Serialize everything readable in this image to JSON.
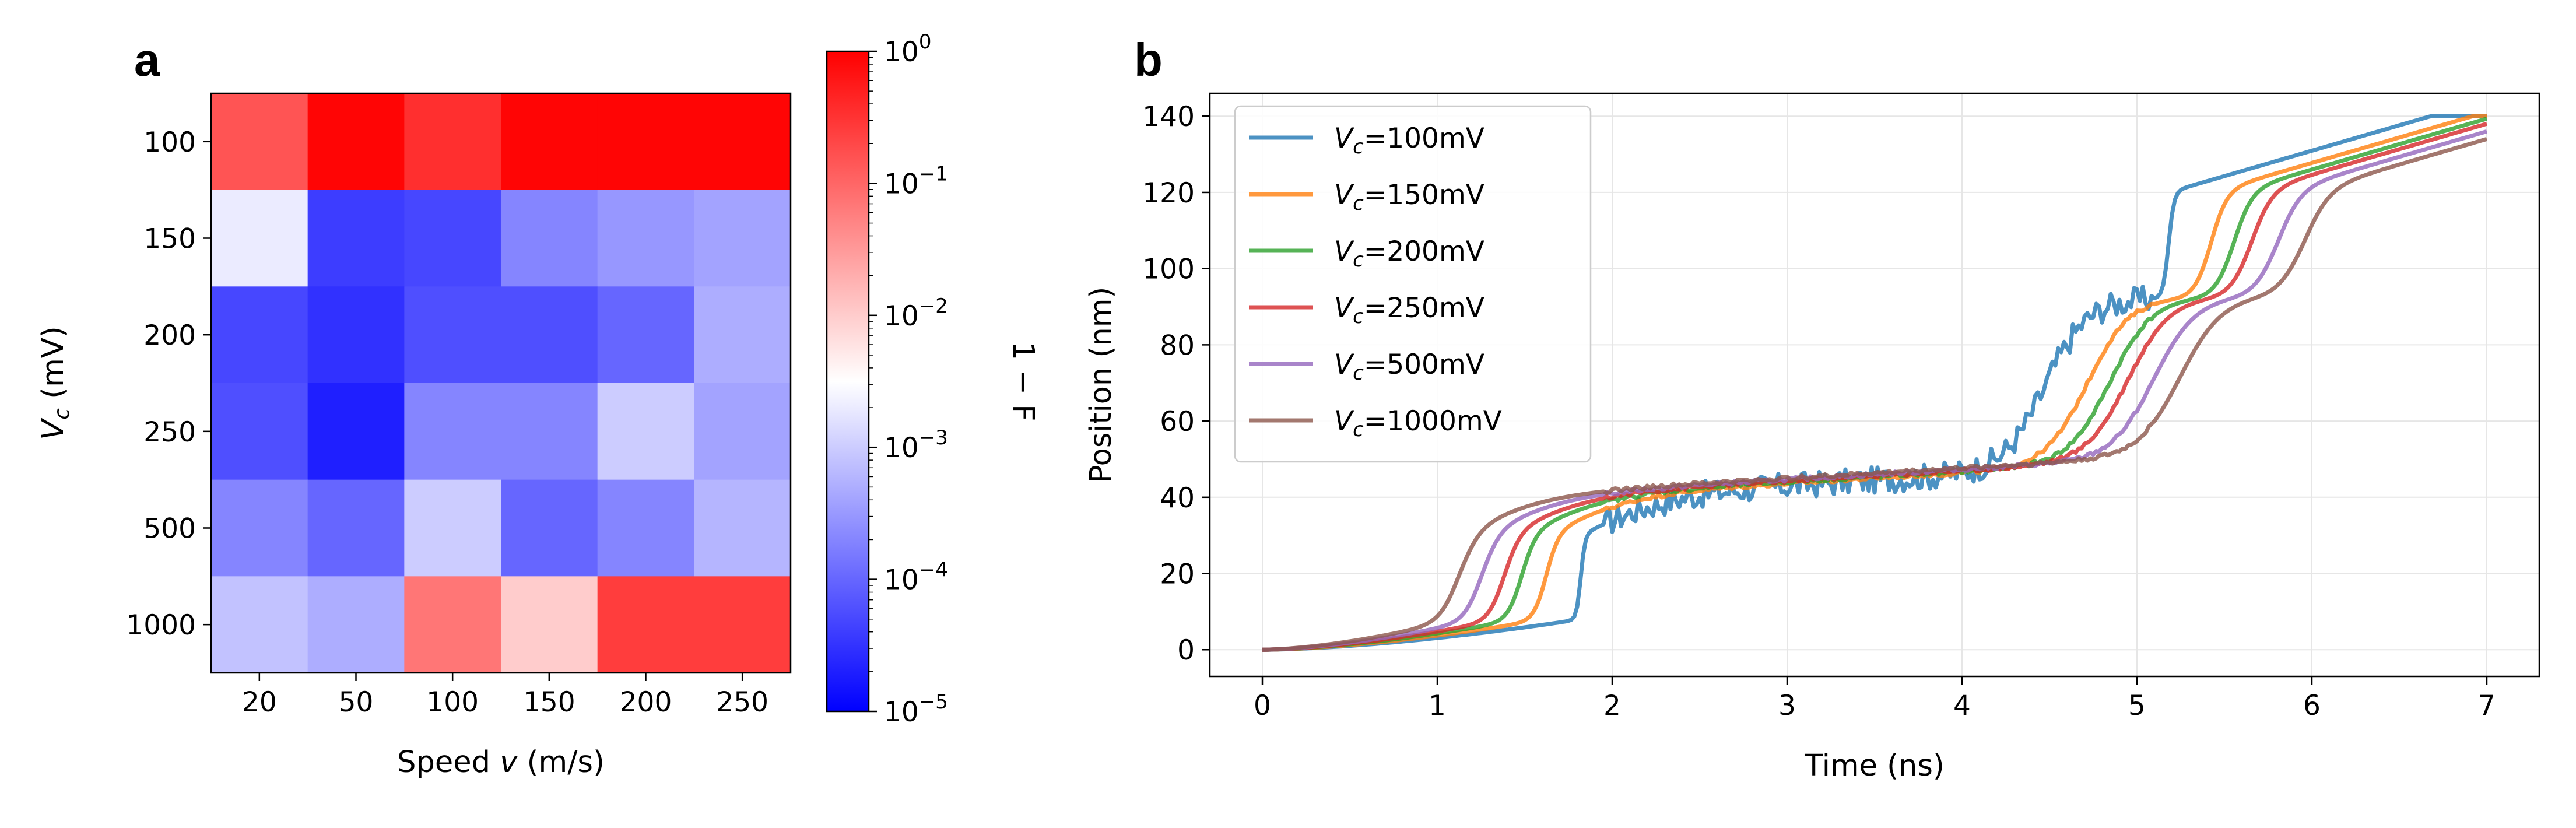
{
  "chart_data": [
    {
      "panel": "a",
      "type": "heatmap",
      "xlabel": "Speed v (m/s)",
      "ylabel": "V_c (mV)",
      "x_categories": [
        "20",
        "50",
        "100",
        "150",
        "200",
        "250"
      ],
      "y_categories": [
        "100",
        "150",
        "200",
        "250",
        "500",
        "1000"
      ],
      "values": [
        [
          0.15,
          0.9,
          0.35,
          0.9,
          0.9,
          0.9
        ],
        [
          0.002,
          4e-05,
          5e-05,
          0.0002,
          0.0003,
          0.0004
        ],
        [
          5e-05,
          3e-05,
          6e-05,
          6e-05,
          0.0001,
          0.0005
        ],
        [
          6e-05,
          2e-05,
          0.0002,
          0.0002,
          0.001,
          0.0004
        ],
        [
          0.0002,
          0.0001,
          0.001,
          0.0001,
          0.0002,
          0.0006
        ],
        [
          0.0008,
          0.0005,
          0.07,
          0.01,
          0.25,
          0.25
        ]
      ],
      "colorbar": {
        "label": "1 − F",
        "scale": "log",
        "range": [
          1e-05,
          1
        ],
        "colormap": "bwr",
        "tick_labels": [
          {
            "value": 1,
            "base": "10",
            "exp": "0"
          },
          {
            "value": 0.1,
            "base": "10",
            "exp": "−1"
          },
          {
            "value": 0.01,
            "base": "10",
            "exp": "−2"
          },
          {
            "value": 0.001,
            "base": "10",
            "exp": "−3"
          },
          {
            "value": 0.0001,
            "base": "10",
            "exp": "−4"
          },
          {
            "value": 1e-05,
            "base": "10",
            "exp": "−5"
          }
        ]
      }
    },
    {
      "panel": "b",
      "type": "line",
      "xlabel": "Time (ns)",
      "ylabel": "Position (nm)",
      "xlim": [
        -0.3,
        7.3
      ],
      "ylim": [
        -7,
        146
      ],
      "xticks": [
        0,
        1,
        2,
        3,
        4,
        5,
        6,
        7
      ],
      "yticks": [
        0,
        20,
        40,
        60,
        80,
        100,
        120,
        140
      ],
      "grid": true,
      "legend_position": "upper-left",
      "series": [
        {
          "name": "V_c=100mV",
          "label_sym": "V",
          "label_sub": "c",
          "label_rest": "=100mV",
          "color": "#1f77b4",
          "t1": 1.82,
          "t2": 5.18,
          "w": 0.012,
          "noise": 3.5
        },
        {
          "name": "V_c=150mV",
          "label_sym": "V",
          "label_sub": "c",
          "label_rest": "=150mV",
          "color": "#ff7f0e",
          "t1": 1.62,
          "t2": 5.42,
          "w": 0.035,
          "noise": 0.5
        },
        {
          "name": "V_c=200mV",
          "label_sym": "V",
          "label_sub": "c",
          "label_rest": "=200mV",
          "color": "#2ca02c",
          "t1": 1.48,
          "t2": 5.55,
          "w": 0.04,
          "noise": 0.5
        },
        {
          "name": "V_c=250mV",
          "label_sym": "V",
          "label_sub": "c",
          "label_rest": "=250mV",
          "color": "#d62728",
          "t1": 1.38,
          "t2": 5.65,
          "w": 0.045,
          "noise": 0.5
        },
        {
          "name": "V_c=500mV",
          "label_sym": "V",
          "label_sub": "c",
          "label_rest": "=500mV",
          "color": "#9467bd",
          "t1": 1.25,
          "t2": 5.8,
          "w": 0.05,
          "noise": 0.5
        },
        {
          "name": "V_c=1000mV",
          "label_sym": "V",
          "label_sub": "c",
          "label_rest": "=1000mV",
          "color": "#8c564b",
          "t1": 1.12,
          "t2": 5.95,
          "w": 0.055,
          "noise": 0.5
        }
      ],
      "step_shape": {
        "low_plateau_start": 0,
        "low_plateau_end": 8,
        "mid_plateau_start": 28,
        "mid_plateau_end": 100,
        "high_plateau_start": 120,
        "high_plateau_end": 140,
        "second_step_shift": 2.6
      }
    }
  ],
  "labels": {
    "panel_a": "a",
    "panel_b": "b"
  }
}
